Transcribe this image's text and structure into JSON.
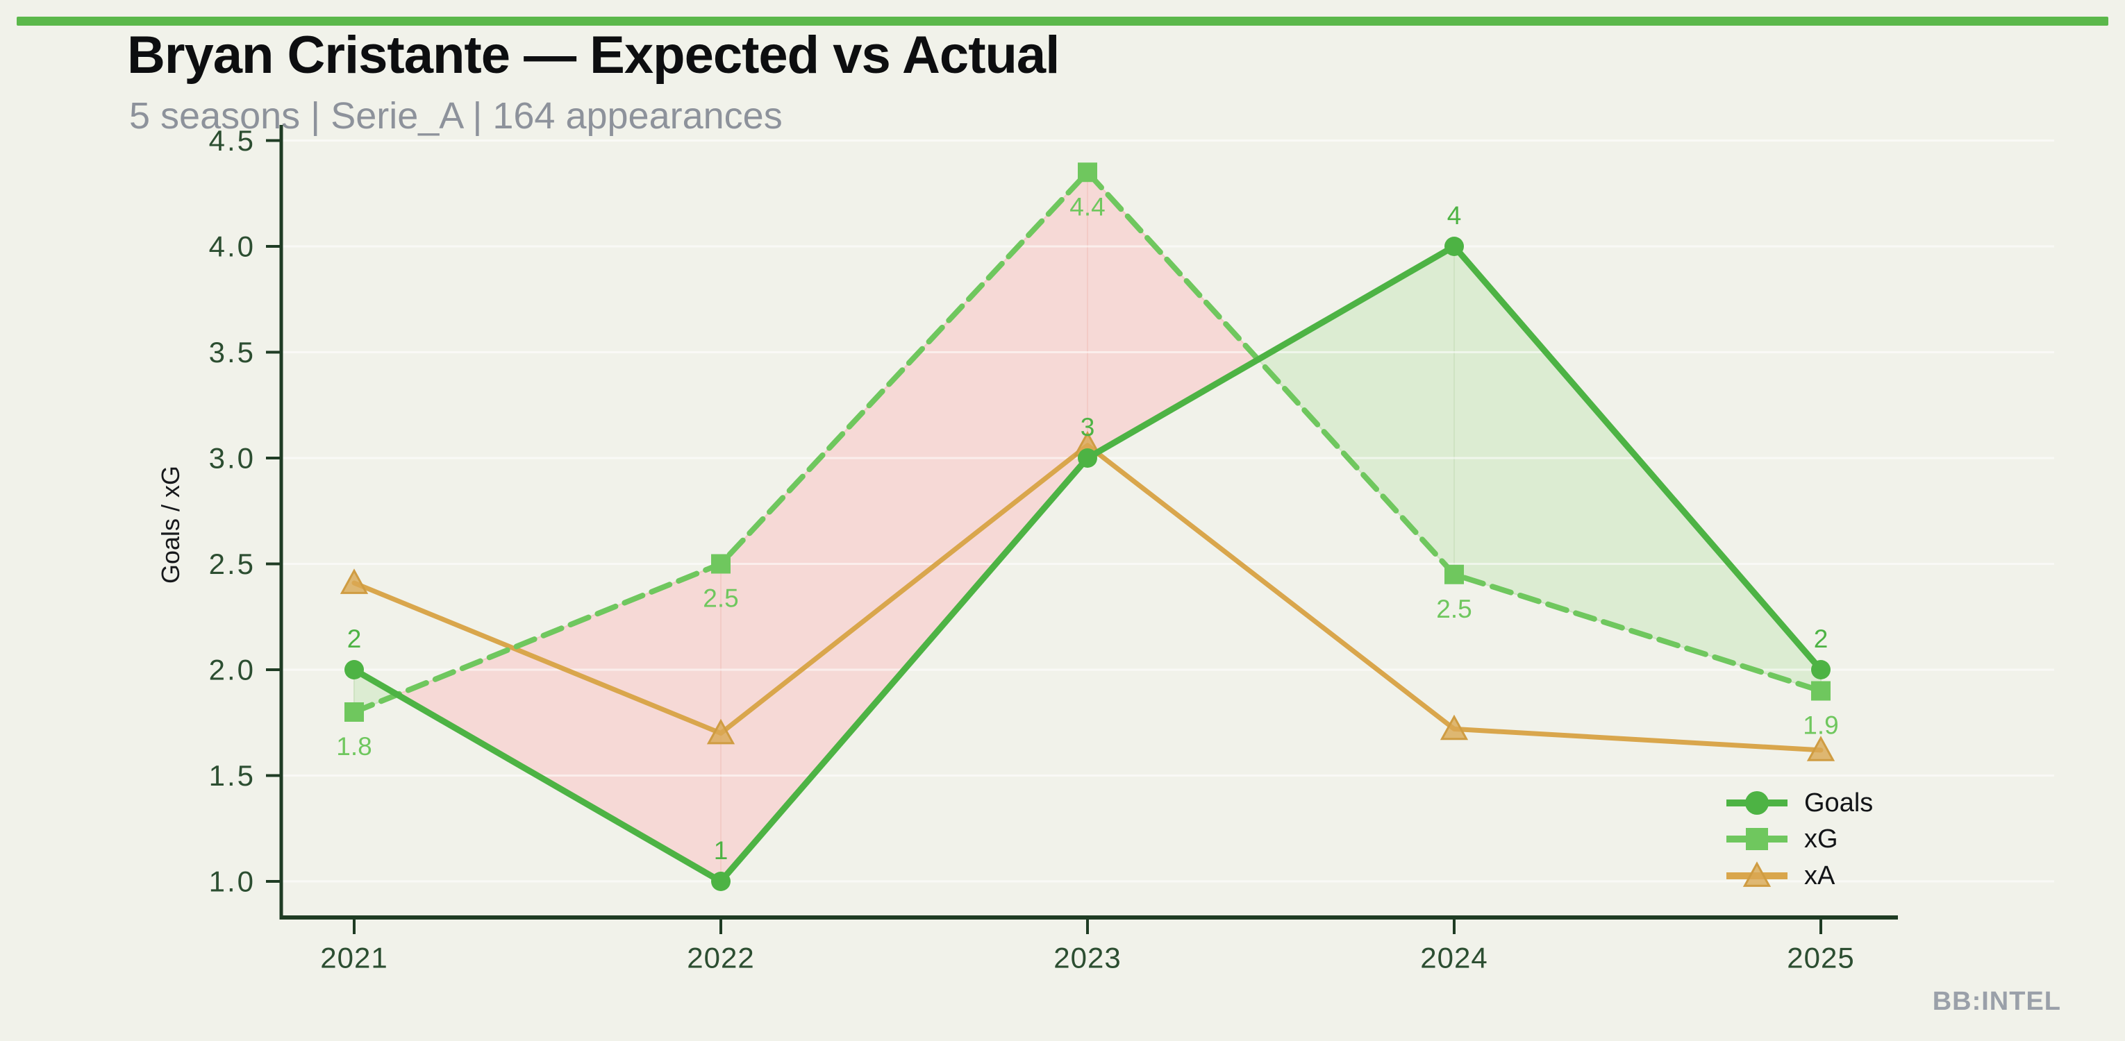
{
  "header": {
    "title": "Bryan Cristante — Expected vs Actual",
    "subtitle": "5 seasons | Serie_A | 164 appearances"
  },
  "footer": {
    "brand": "BB:INTEL"
  },
  "theme": {
    "background": "#f1f2ea",
    "accent_bar": "#5bb84b",
    "axis_color": "#1f3c24",
    "tick_label_color": "#2c4e31",
    "gridline_color": "rgba(255,255,255,0.55)",
    "subtitle_color": "#8d929b",
    "brand_color": "#9aa0a9"
  },
  "chart_data": {
    "type": "line",
    "title": "Bryan Cristante — Expected vs Actual",
    "xlabel": "",
    "ylabel": "Goals / xG",
    "categories": [
      "2021",
      "2022",
      "2023",
      "2024",
      "2025"
    ],
    "ylim": [
      0.85,
      4.6
    ],
    "yticks": [
      1.0,
      1.5,
      2.0,
      2.5,
      3.0,
      3.5,
      4.0,
      4.5
    ],
    "grid": "horizontal-faint",
    "legend_position": "lower-right",
    "series": [
      {
        "name": "Goals",
        "values": [
          2,
          1,
          3,
          4,
          2
        ],
        "point_labels": [
          "2",
          "1",
          "3",
          "4",
          "2"
        ],
        "label_side": "above",
        "color": "#4db344",
        "line_style": "solid",
        "line_width": 9,
        "marker": "circle",
        "marker_size": 28
      },
      {
        "name": "xG",
        "values": [
          1.8,
          2.5,
          4.35,
          2.45,
          1.9
        ],
        "point_labels": [
          "1.8",
          "2.5",
          "4.4",
          "2.5",
          "1.9"
        ],
        "label_side": "below",
        "color": "#6fc75e",
        "line_style": "dashed",
        "line_width": 8,
        "marker": "square",
        "marker_size": 28
      },
      {
        "name": "xA",
        "values": [
          2.41,
          1.7,
          3.06,
          1.72,
          1.62
        ],
        "point_labels": [
          "",
          "",
          "",
          "",
          ""
        ],
        "label_side": "none",
        "color": "#d9a64c",
        "line_style": "solid",
        "line_width": 7,
        "marker": "triangle",
        "marker_size": 32
      }
    ],
    "diff_fill": {
      "between": [
        "Goals",
        "xG"
      ],
      "over_color": "#dcecd2",
      "over_edge": "#cfe3c3",
      "under_color": "#f6d9d6",
      "under_edge": "#f3cbc6",
      "over_meaning": "Goals above xG",
      "under_meaning": "xG above Goals"
    },
    "legend": [
      "Goals",
      "xG",
      "xA"
    ]
  }
}
